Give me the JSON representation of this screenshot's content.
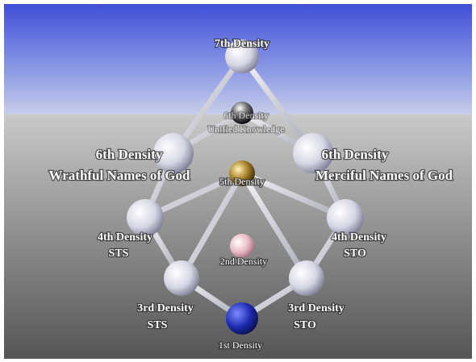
{
  "nodes": [
    {
      "label": "7th Density"
    },
    {
      "label": "6th Density",
      "sublabel": "Unified Knowledge"
    },
    {
      "label": "6th Density",
      "sublabel": "Wrathful Names of God"
    },
    {
      "label": "6th Density",
      "sublabel": "Merciful Names of God"
    },
    {
      "label": "5th Density"
    },
    {
      "label": "4th Density",
      "sublabel": "STS"
    },
    {
      "label": "4th Density",
      "sublabel": "STO"
    },
    {
      "label": "2nd Density"
    },
    {
      "label": "3rd Density",
      "sublabel": "STS"
    },
    {
      "label": "3rd Density",
      "sublabel": "STO"
    },
    {
      "label": "1st Density"
    }
  ]
}
